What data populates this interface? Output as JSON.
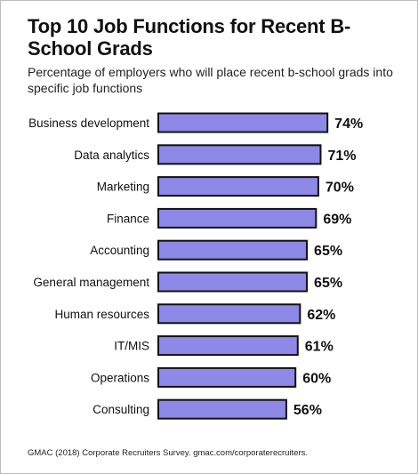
{
  "title": "Top 10 Job Functions for Recent B-School Grads",
  "subtitle": "Percentage of employers who will place recent b-school grads into specific job functions",
  "source": "GMAC (2018) Corporate Recruiters Survey. gmac.com/corporaterecruiters.",
  "colors": {
    "bar_fill": "#8e88e6",
    "bar_stroke": "#111111",
    "text": "#111111"
  },
  "chart_data": {
    "type": "bar",
    "orientation": "horizontal",
    "categories": [
      "Business development",
      "Data analytics",
      "Marketing",
      "Finance",
      "Accounting",
      "General management",
      "Human resources",
      "IT/MIS",
      "Operations",
      "Consulting"
    ],
    "values": [
      74,
      71,
      70,
      69,
      65,
      65,
      62,
      61,
      60,
      56
    ],
    "value_labels": [
      "74%",
      "71%",
      "70%",
      "69%",
      "65%",
      "65%",
      "62%",
      "61%",
      "60%",
      "56%"
    ],
    "unit": "%",
    "grid": false,
    "legend": "none"
  }
}
